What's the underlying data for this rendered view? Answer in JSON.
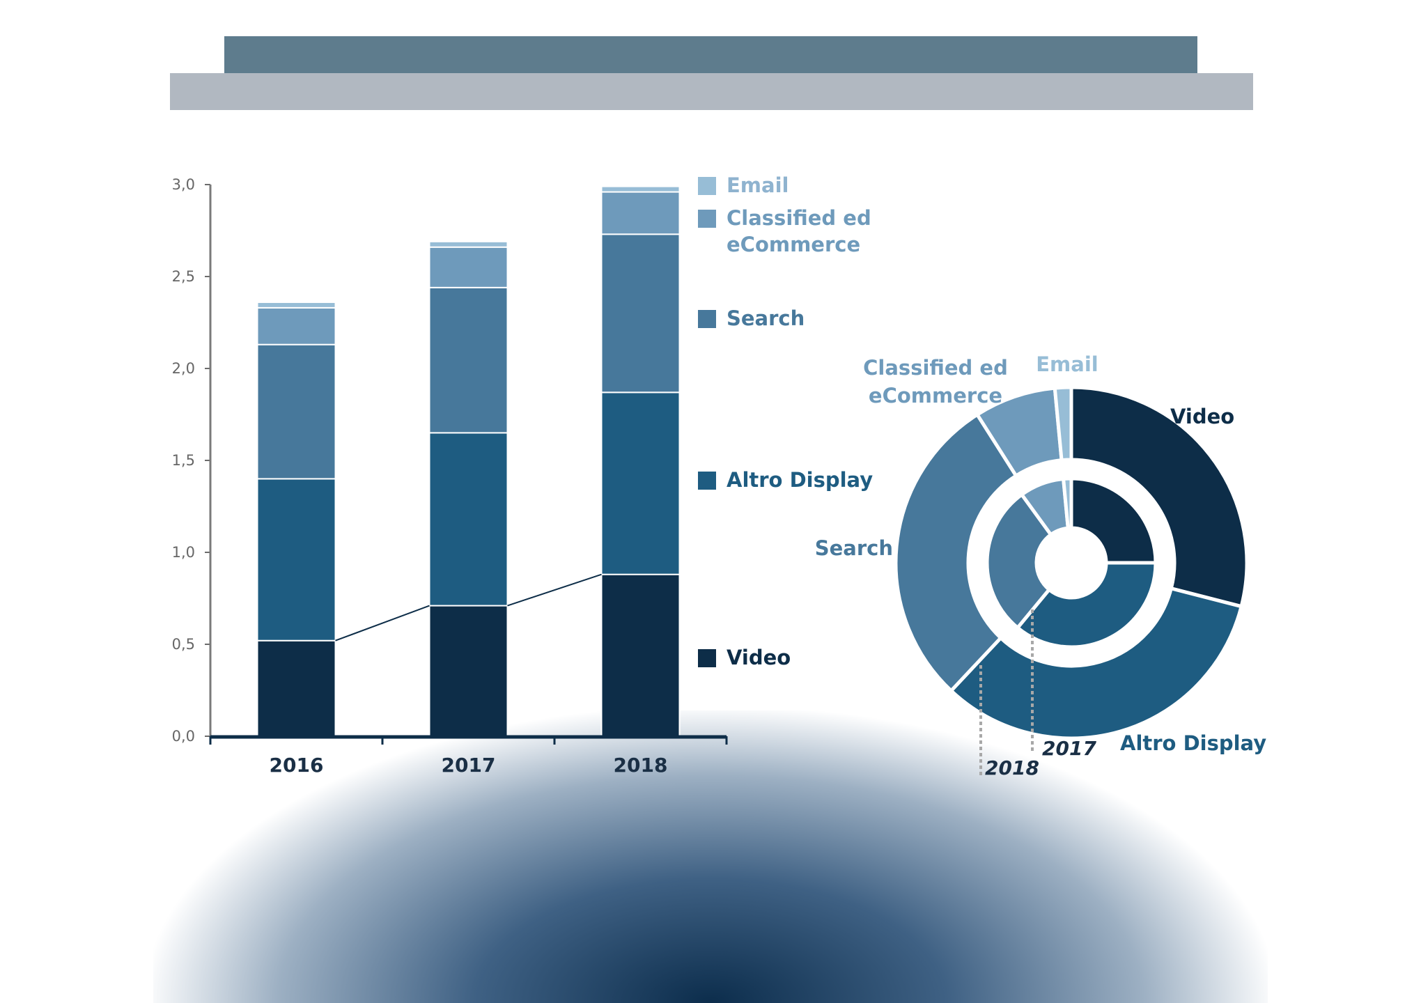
{
  "colors": {
    "Video": "#0d2d48",
    "Altro Display": "#1e5c81",
    "Search": "#47789b",
    "Classified ed eCommerce": "#6e9abb",
    "Email": "#97bdd6"
  },
  "chart_data": [
    {
      "type": "bar",
      "stacked": true,
      "categories": [
        "2016",
        "2017",
        "2018"
      ],
      "ylim": [
        0,
        3.0
      ],
      "yticks": [
        "0,0",
        "0,5",
        "1,0",
        "1,5",
        "2,0",
        "2,5",
        "3,0"
      ],
      "series": [
        {
          "name": "Video",
          "values": [
            0.52,
            0.71,
            0.88
          ]
        },
        {
          "name": "Altro Display",
          "values": [
            0.88,
            0.94,
            0.99
          ]
        },
        {
          "name": "Search",
          "values": [
            0.73,
            0.79,
            0.86
          ]
        },
        {
          "name": "Classified ed eCommerce",
          "values": [
            0.2,
            0.22,
            0.23
          ]
        },
        {
          "name": "Email",
          "values": [
            0.03,
            0.03,
            0.03
          ]
        }
      ],
      "legend": {
        "placement": "right",
        "items": [
          {
            "series": "Email",
            "lines": [
              "Email"
            ]
          },
          {
            "series": "Classified ed eCommerce",
            "lines": [
              "Classified ed",
              "eCommerce"
            ]
          },
          {
            "series": "Search",
            "lines": [
              "Search"
            ]
          },
          {
            "series": "Altro Display",
            "lines": [
              "Altro Display"
            ]
          },
          {
            "series": "Video",
            "lines": [
              "Video"
            ]
          }
        ]
      },
      "trend_line": "Video"
    },
    {
      "type": "pie",
      "variant": "donut",
      "rings": [
        {
          "name": "2017",
          "values": {
            "Video": 0.25,
            "Altro Display": 0.36,
            "Search": 0.29,
            "Classified ed eCommerce": 0.085,
            "Email": 0.015
          }
        },
        {
          "name": "2018",
          "values": {
            "Video": 0.29,
            "Altro Display": 0.33,
            "Search": 0.29,
            "Classified ed eCommerce": 0.075,
            "Email": 0.015
          }
        }
      ],
      "labels": [
        {
          "series": "Video",
          "lines": [
            "Video"
          ]
        },
        {
          "series": "Email",
          "lines": [
            "Email"
          ]
        },
        {
          "series": "Classified ed eCommerce",
          "lines": [
            "Classified ed",
            "eCommerce"
          ]
        },
        {
          "series": "Search",
          "lines": [
            "Search"
          ]
        },
        {
          "series": "Altro Display",
          "lines": [
            "Altro Display"
          ]
        }
      ],
      "ring_labels": [
        "2017",
        "2018"
      ]
    }
  ]
}
